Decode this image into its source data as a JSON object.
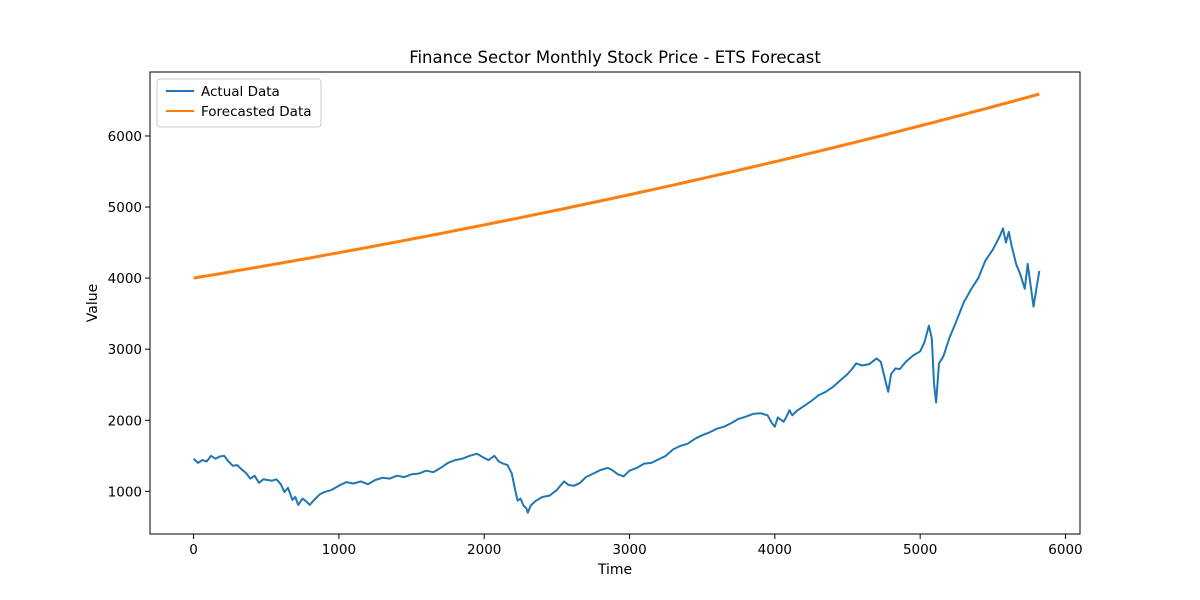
{
  "chart_data": {
    "type": "line",
    "title": "Finance Sector Monthly Stock Price - ETS Forecast",
    "xlabel": "Time",
    "ylabel": "Value",
    "xlim": [
      -300,
      6100
    ],
    "ylim": [
      400,
      6900
    ],
    "xticks": [
      0,
      1000,
      2000,
      3000,
      4000,
      5000,
      6000
    ],
    "yticks": [
      1000,
      2000,
      3000,
      4000,
      5000,
      6000
    ],
    "legend_position": "upper-left",
    "grid": false,
    "series": [
      {
        "name": "Actual Data",
        "color": "#1f77b4",
        "points": [
          [
            0,
            1460
          ],
          [
            30,
            1400
          ],
          [
            60,
            1440
          ],
          [
            90,
            1420
          ],
          [
            120,
            1500
          ],
          [
            150,
            1460
          ],
          [
            180,
            1490
          ],
          [
            210,
            1500
          ],
          [
            240,
            1420
          ],
          [
            270,
            1360
          ],
          [
            300,
            1370
          ],
          [
            330,
            1310
          ],
          [
            360,
            1260
          ],
          [
            390,
            1180
          ],
          [
            420,
            1220
          ],
          [
            450,
            1120
          ],
          [
            480,
            1170
          ],
          [
            510,
            1160
          ],
          [
            540,
            1150
          ],
          [
            570,
            1170
          ],
          [
            600,
            1100
          ],
          [
            625,
            990
          ],
          [
            650,
            1050
          ],
          [
            680,
            880
          ],
          [
            700,
            920
          ],
          [
            720,
            810
          ],
          [
            750,
            900
          ],
          [
            780,
            850
          ],
          [
            800,
            810
          ],
          [
            830,
            880
          ],
          [
            870,
            960
          ],
          [
            900,
            990
          ],
          [
            950,
            1020
          ],
          [
            1000,
            1080
          ],
          [
            1050,
            1130
          ],
          [
            1100,
            1110
          ],
          [
            1150,
            1140
          ],
          [
            1200,
            1100
          ],
          [
            1250,
            1160
          ],
          [
            1300,
            1190
          ],
          [
            1350,
            1180
          ],
          [
            1400,
            1220
          ],
          [
            1450,
            1200
          ],
          [
            1500,
            1240
          ],
          [
            1550,
            1250
          ],
          [
            1600,
            1290
          ],
          [
            1650,
            1270
          ],
          [
            1700,
            1330
          ],
          [
            1750,
            1400
          ],
          [
            1800,
            1440
          ],
          [
            1850,
            1460
          ],
          [
            1900,
            1500
          ],
          [
            1950,
            1530
          ],
          [
            1990,
            1480
          ],
          [
            2030,
            1440
          ],
          [
            2070,
            1500
          ],
          [
            2100,
            1420
          ],
          [
            2130,
            1390
          ],
          [
            2160,
            1370
          ],
          [
            2190,
            1250
          ],
          [
            2210,
            1050
          ],
          [
            2230,
            870
          ],
          [
            2250,
            900
          ],
          [
            2270,
            800
          ],
          [
            2290,
            760
          ],
          [
            2300,
            700
          ],
          [
            2320,
            800
          ],
          [
            2350,
            860
          ],
          [
            2400,
            920
          ],
          [
            2450,
            940
          ],
          [
            2500,
            1020
          ],
          [
            2550,
            1140
          ],
          [
            2580,
            1090
          ],
          [
            2620,
            1080
          ],
          [
            2660,
            1120
          ],
          [
            2700,
            1200
          ],
          [
            2750,
            1250
          ],
          [
            2800,
            1300
          ],
          [
            2850,
            1330
          ],
          [
            2880,
            1300
          ],
          [
            2920,
            1240
          ],
          [
            2960,
            1210
          ],
          [
            3000,
            1290
          ],
          [
            3050,
            1330
          ],
          [
            3100,
            1390
          ],
          [
            3150,
            1400
          ],
          [
            3200,
            1450
          ],
          [
            3250,
            1500
          ],
          [
            3300,
            1590
          ],
          [
            3350,
            1640
          ],
          [
            3400,
            1670
          ],
          [
            3450,
            1740
          ],
          [
            3500,
            1790
          ],
          [
            3550,
            1830
          ],
          [
            3600,
            1880
          ],
          [
            3650,
            1910
          ],
          [
            3700,
            1960
          ],
          [
            3750,
            2020
          ],
          [
            3800,
            2050
          ],
          [
            3850,
            2090
          ],
          [
            3900,
            2100
          ],
          [
            3950,
            2070
          ],
          [
            3980,
            1960
          ],
          [
            4000,
            1910
          ],
          [
            4020,
            2040
          ],
          [
            4060,
            1980
          ],
          [
            4080,
            2050
          ],
          [
            4100,
            2140
          ],
          [
            4120,
            2070
          ],
          [
            4150,
            2130
          ],
          [
            4200,
            2200
          ],
          [
            4250,
            2270
          ],
          [
            4300,
            2350
          ],
          [
            4350,
            2400
          ],
          [
            4400,
            2470
          ],
          [
            4450,
            2560
          ],
          [
            4500,
            2650
          ],
          [
            4530,
            2720
          ],
          [
            4560,
            2800
          ],
          [
            4600,
            2770
          ],
          [
            4650,
            2790
          ],
          [
            4700,
            2870
          ],
          [
            4730,
            2820
          ],
          [
            4760,
            2560
          ],
          [
            4780,
            2400
          ],
          [
            4800,
            2650
          ],
          [
            4830,
            2730
          ],
          [
            4860,
            2720
          ],
          [
            4900,
            2820
          ],
          [
            4950,
            2910
          ],
          [
            5000,
            2970
          ],
          [
            5030,
            3100
          ],
          [
            5060,
            3330
          ],
          [
            5080,
            3150
          ],
          [
            5095,
            2520
          ],
          [
            5110,
            2250
          ],
          [
            5130,
            2800
          ],
          [
            5160,
            2900
          ],
          [
            5200,
            3150
          ],
          [
            5250,
            3400
          ],
          [
            5300,
            3660
          ],
          [
            5350,
            3840
          ],
          [
            5400,
            4000
          ],
          [
            5450,
            4250
          ],
          [
            5500,
            4400
          ],
          [
            5530,
            4520
          ],
          [
            5550,
            4600
          ],
          [
            5570,
            4700
          ],
          [
            5590,
            4500
          ],
          [
            5610,
            4650
          ],
          [
            5630,
            4450
          ],
          [
            5660,
            4200
          ],
          [
            5690,
            4050
          ],
          [
            5720,
            3850
          ],
          [
            5740,
            4200
          ],
          [
            5760,
            3900
          ],
          [
            5780,
            3600
          ],
          [
            5800,
            3850
          ],
          [
            5820,
            4100
          ]
        ]
      },
      {
        "name": "Forecasted Data",
        "color": "#ff7f0e",
        "start": [
          0,
          4000
        ],
        "end": [
          5820,
          6590
        ],
        "growth": "exponential"
      }
    ]
  }
}
